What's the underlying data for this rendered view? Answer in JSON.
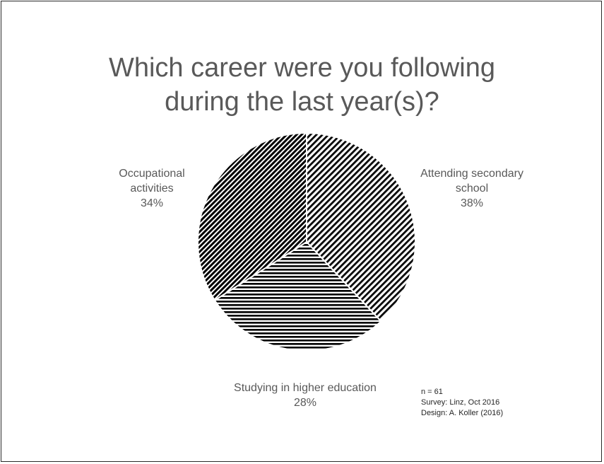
{
  "title": {
    "line1": "Which career were you following",
    "line2": "during the last year(s)?"
  },
  "chart_data": {
    "type": "pie",
    "title": "Which career were you following during the last year(s)?",
    "slices": [
      {
        "label_lines": [
          "Attending secondary",
          "school"
        ],
        "percent_label": "38%",
        "value": 38,
        "pattern": "diagonal"
      },
      {
        "label_lines": [
          "Studying in higher education"
        ],
        "percent_label": "28%",
        "value": 28,
        "pattern": "horizontal"
      },
      {
        "label_lines": [
          "Occupational",
          "activities"
        ],
        "percent_label": "34%",
        "value": 34,
        "pattern": "diagonal-dense"
      }
    ],
    "start_angle_deg": 0,
    "direction": "clockwise",
    "legend": "none"
  },
  "notes": {
    "n": "n = 61",
    "survey": "Survey: Linz, Oct 2016",
    "design": "Design: A. Koller (2016)"
  },
  "colors": {
    "text": "#595959",
    "hatch": "#000000",
    "border": "#2b2b2b"
  }
}
